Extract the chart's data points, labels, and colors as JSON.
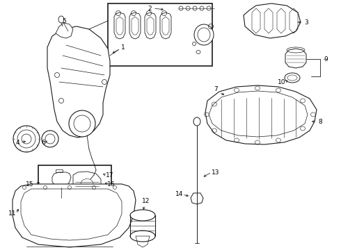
{
  "bg_color": "#ffffff",
  "line_color": "#1a1a1a",
  "label_color": "#000000",
  "label_fontsize": 6.5,
  "fig_width": 4.9,
  "fig_height": 3.6,
  "dpi": 100
}
